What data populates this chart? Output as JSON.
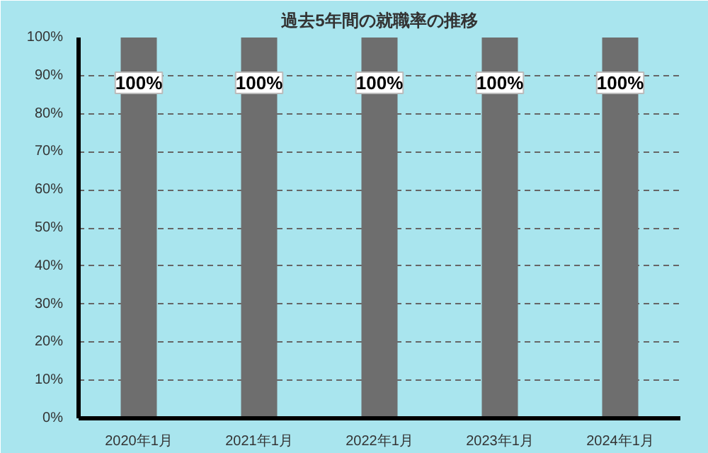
{
  "chart_data": {
    "type": "bar",
    "title": "過去5年間の就職率の推移",
    "categories": [
      "2020年1月",
      "2021年1月",
      "2022年1月",
      "2023年1月",
      "2024年1月"
    ],
    "values": [
      100,
      100,
      100,
      100,
      100
    ],
    "value_labels": [
      "100%",
      "100%",
      "100%",
      "100%",
      "100%"
    ],
    "color": "#6e6e6e",
    "ylim": [
      0,
      100
    ],
    "yticks": [
      {
        "value": 0,
        "label": "0%"
      },
      {
        "value": 10,
        "label": "10%"
      },
      {
        "value": 20,
        "label": "20%"
      },
      {
        "value": 30,
        "label": "30%"
      },
      {
        "value": 40,
        "label": "40%"
      },
      {
        "value": 50,
        "label": "50%"
      },
      {
        "value": 60,
        "label": "60%"
      },
      {
        "value": 70,
        "label": "70%"
      },
      {
        "value": 80,
        "label": "80%"
      },
      {
        "value": 90,
        "label": "90%"
      },
      {
        "value": 100,
        "label": "100%"
      }
    ],
    "grid": "y"
  }
}
